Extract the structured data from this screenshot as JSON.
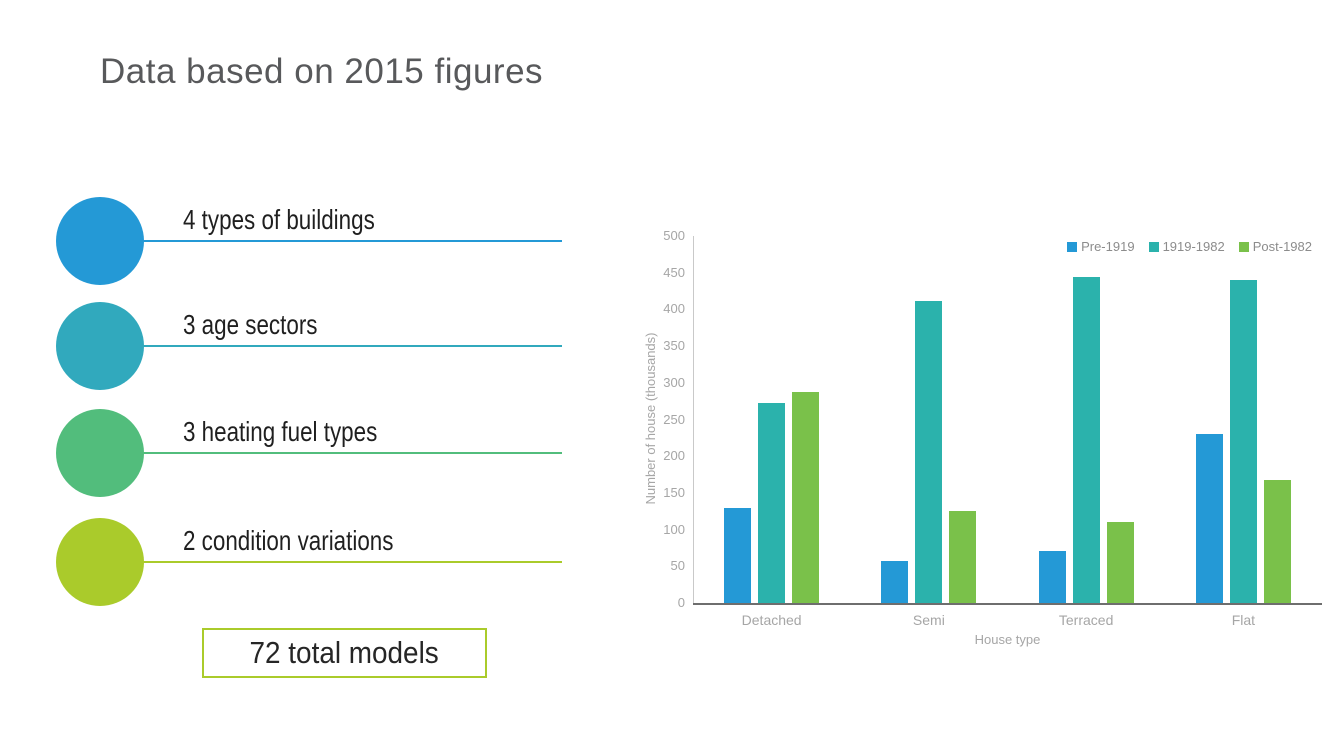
{
  "slide": {
    "title": "Data based on 2015 figures",
    "background_color": "#ffffff",
    "title_color": "#58595B"
  },
  "features": {
    "items": [
      {
        "label": "4 types of buildings",
        "color": "#2499D6"
      },
      {
        "label": "3 age sectors",
        "color": "#31A9BD"
      },
      {
        "label": "3 heating fuel types",
        "color": "#52BD7C"
      },
      {
        "label": "2 condition variations",
        "color": "#AACB2B"
      }
    ],
    "total_label": "72 total models",
    "total_border_color": "#AACB2B"
  },
  "chart_data": {
    "type": "bar",
    "categories": [
      "Detached",
      "Semi",
      "Terraced",
      "Flat"
    ],
    "series": [
      {
        "name": "Pre-1919",
        "color": "#2499D6",
        "values": [
          130,
          57,
          71,
          230
        ]
      },
      {
        "name": "1919-1982",
        "color": "#2BB2AC",
        "values": [
          273,
          412,
          444,
          440
        ]
      },
      {
        "name": "Post-1982",
        "color": "#7AC14A",
        "values": [
          288,
          125,
          110,
          168
        ]
      }
    ],
    "xlabel": "House type",
    "ylabel": "Number of house (thousands)",
    "ylim": [
      0,
      500
    ],
    "ytick_step": 50,
    "legend_position": "top-right",
    "grid": false,
    "axis_text_color": "#A6A6A6",
    "x_axis_line_color": "#6E6E6E",
    "y_axis_line_color": "#C9C9C9"
  }
}
